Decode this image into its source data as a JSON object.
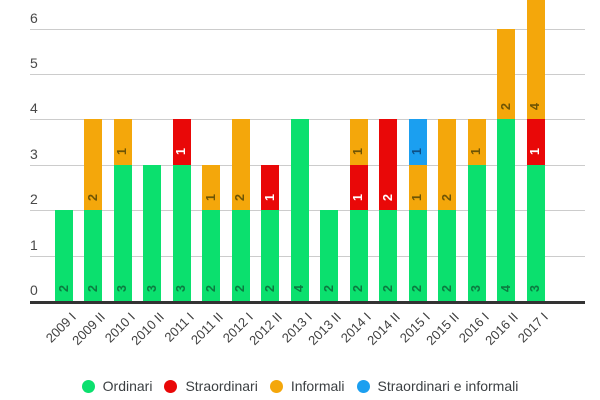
{
  "chart_data": {
    "type": "bar",
    "stacked": true,
    "orientation": "vertical",
    "title": "",
    "xlabel": "",
    "ylabel": "",
    "categories": [
      "2009 I",
      "2009 II",
      "2010 I",
      "2010 II",
      "2011 I",
      "2011 II",
      "2012 I",
      "2012 II",
      "2013 I",
      "2013 II",
      "2014 I",
      "2014 II",
      "2015 I",
      "2015 II",
      "2016 I",
      "2016 II",
      "2017 I"
    ],
    "series": [
      {
        "name": "Ordinari",
        "color": "#0be06e",
        "annotation_color": "#0c7a40",
        "values": [
          2,
          2,
          3,
          3,
          3,
          2,
          2,
          2,
          4,
          2,
          2,
          2,
          2,
          2,
          3,
          4,
          3
        ]
      },
      {
        "name": "Straordinari",
        "color": "#e90808",
        "annotation_color": "#ffffff",
        "values": [
          0,
          0,
          0,
          0,
          1,
          0,
          0,
          1,
          0,
          0,
          1,
          2,
          0,
          0,
          0,
          0,
          1
        ]
      },
      {
        "name": "Informali",
        "color": "#f4a70b",
        "annotation_color": "#6d5405",
        "values": [
          0,
          2,
          1,
          0,
          0,
          1,
          2,
          0,
          0,
          0,
          1,
          0,
          1,
          2,
          1,
          2,
          4
        ]
      },
      {
        "name": "Straordinari e informali",
        "color": "#1b9ff0",
        "annotation_color": "#0d5086",
        "values": [
          0,
          0,
          0,
          0,
          0,
          0,
          0,
          0,
          0,
          0,
          0,
          0,
          1,
          0,
          0,
          0,
          0
        ]
      }
    ],
    "totals": [
      2,
      4,
      4,
      3,
      4,
      3,
      4,
      3,
      4,
      2,
      4,
      4,
      4,
      4,
      4,
      6,
      8
    ],
    "y_ticks": [
      0,
      1,
      2,
      3,
      4,
      5,
      6
    ],
    "ylim_visible": [
      0,
      6.6
    ],
    "grid": true,
    "legend_position": "bottom",
    "annotations": "segment values shown rotated inside bars",
    "note_top_clipped_bar": "2017 I total 8, clipped at top of image"
  },
  "axis_colors": {
    "gridline": "#cccccc",
    "baseline": "#333333",
    "y_tick_text": "#494949",
    "x_tick_text": "#3f3f3f",
    "legend_text": "#3c4043"
  }
}
